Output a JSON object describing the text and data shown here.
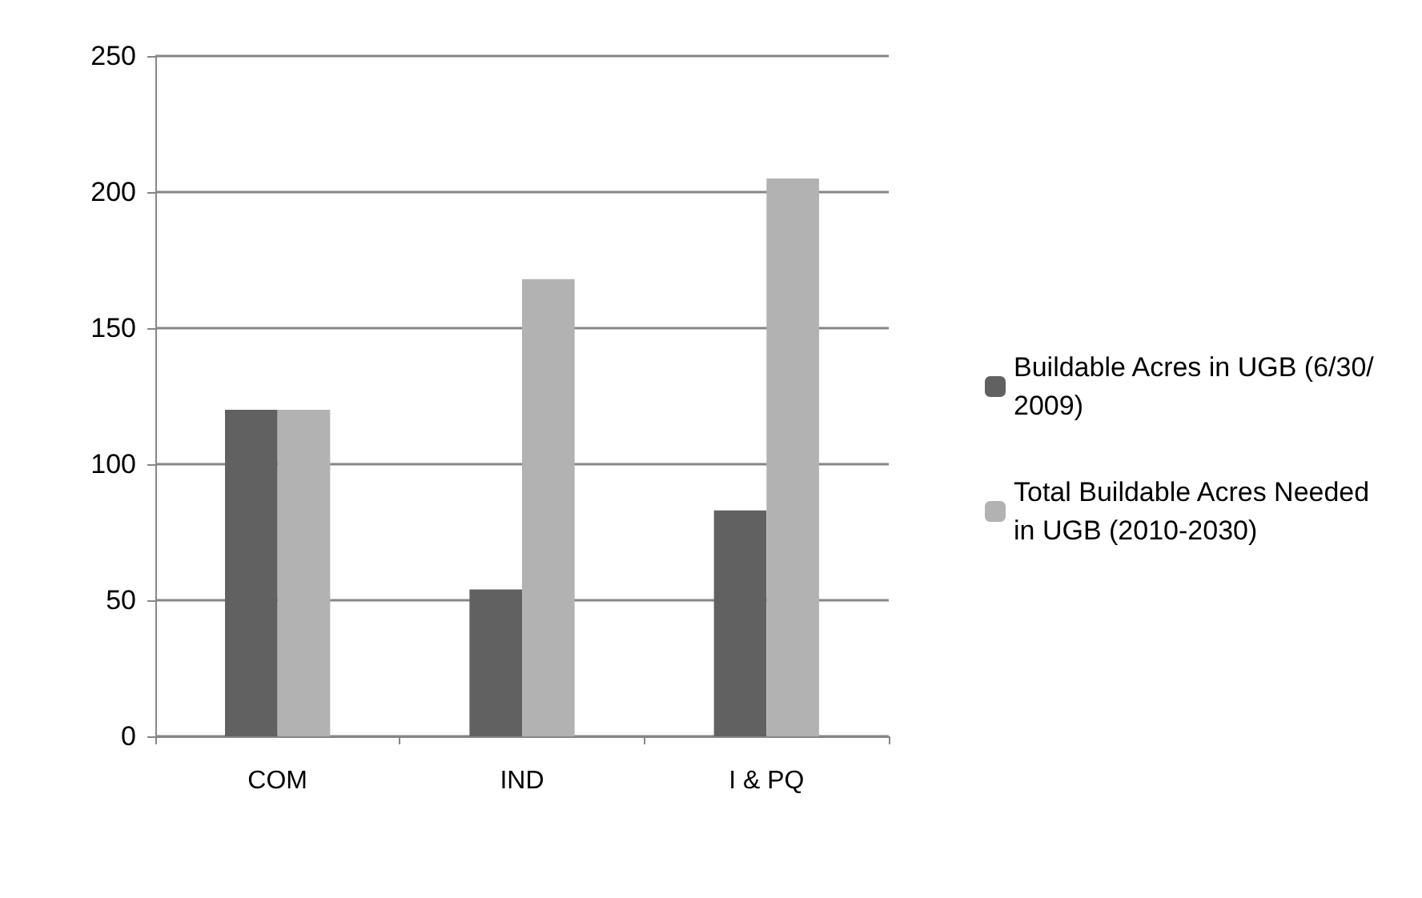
{
  "chart_data": {
    "type": "bar",
    "categories": [
      "COM",
      "IND",
      "I & PQ"
    ],
    "series": [
      {
        "name": "Buildable Acres in UGB (6/30/2009)",
        "color": "#616161",
        "values": [
          120,
          54,
          83
        ]
      },
      {
        "name": "Total Buildable Acres Needed in UGB (2010-2030)",
        "color": "#b2b2b2",
        "values": [
          120,
          168,
          205
        ]
      }
    ],
    "ylim": [
      0,
      250
    ],
    "yticks": [
      0,
      50,
      100,
      150,
      200,
      250
    ],
    "grid": "y",
    "legend": "right"
  }
}
